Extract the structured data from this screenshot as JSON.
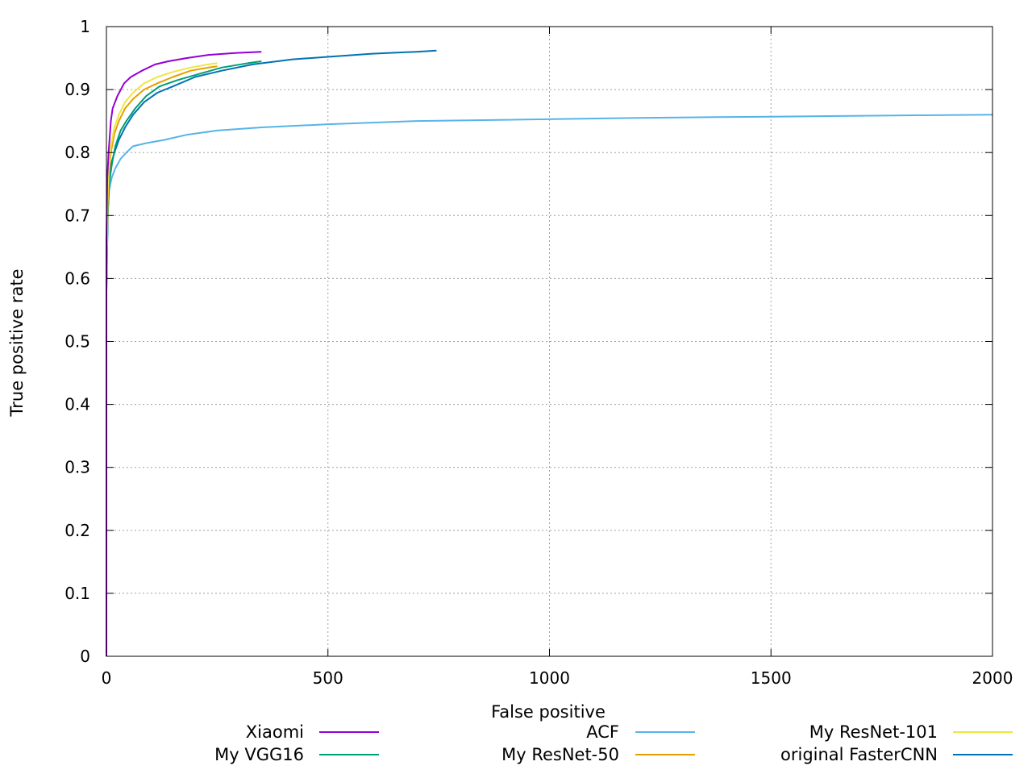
{
  "chart_data": {
    "type": "line",
    "title": "",
    "xlabel": "False positive",
    "ylabel": "True positive rate",
    "xlim": [
      0,
      2000
    ],
    "ylim": [
      0,
      1
    ],
    "xticks": [
      "0",
      "500",
      "1000",
      "1500",
      "2000"
    ],
    "yticks": [
      "0",
      "0.1",
      "0.2",
      "0.3",
      "0.4",
      "0.5",
      "0.6",
      "0.7",
      "0.8",
      "0.9",
      "1"
    ],
    "grid": true,
    "legend_position": "bottom",
    "series": [
      {
        "name": "Xiaomi",
        "color": "#9400d3",
        "points": [
          [
            0,
            0
          ],
          [
            0,
            0.66
          ],
          [
            2,
            0.76
          ],
          [
            5,
            0.8
          ],
          [
            10,
            0.85
          ],
          [
            14,
            0.87
          ],
          [
            25,
            0.89
          ],
          [
            40,
            0.91
          ],
          [
            55,
            0.92
          ],
          [
            80,
            0.93
          ],
          [
            110,
            0.94
          ],
          [
            140,
            0.945
          ],
          [
            180,
            0.95
          ],
          [
            230,
            0.955
          ],
          [
            290,
            0.958
          ],
          [
            350,
            0.96
          ]
        ]
      },
      {
        "name": "My VGG16",
        "color": "#009e73",
        "points": [
          [
            0,
            0
          ],
          [
            0,
            0.58
          ],
          [
            3,
            0.7
          ],
          [
            6,
            0.75
          ],
          [
            12,
            0.78
          ],
          [
            20,
            0.81
          ],
          [
            32,
            0.835
          ],
          [
            45,
            0.85
          ],
          [
            65,
            0.87
          ],
          [
            90,
            0.89
          ],
          [
            120,
            0.905
          ],
          [
            160,
            0.915
          ],
          [
            210,
            0.925
          ],
          [
            260,
            0.935
          ],
          [
            320,
            0.942
          ],
          [
            350,
            0.945
          ]
        ]
      },
      {
        "name": "ACF",
        "color": "#56b4e9",
        "points": [
          [
            0,
            0
          ],
          [
            0,
            0.6
          ],
          [
            3,
            0.7
          ],
          [
            6,
            0.74
          ],
          [
            12,
            0.76
          ],
          [
            20,
            0.775
          ],
          [
            32,
            0.79
          ],
          [
            45,
            0.8
          ],
          [
            60,
            0.81
          ],
          [
            90,
            0.815
          ],
          [
            130,
            0.82
          ],
          [
            180,
            0.828
          ],
          [
            250,
            0.835
          ],
          [
            350,
            0.84
          ],
          [
            500,
            0.845
          ],
          [
            700,
            0.85
          ],
          [
            900,
            0.852
          ],
          [
            1200,
            0.855
          ],
          [
            1500,
            0.857
          ],
          [
            1800,
            0.859
          ],
          [
            2000,
            0.86
          ]
        ]
      },
      {
        "name": "My ResNet-50",
        "color": "#e69f00",
        "points": [
          [
            0,
            0
          ],
          [
            0,
            0.6
          ],
          [
            3,
            0.72
          ],
          [
            6,
            0.77
          ],
          [
            10,
            0.8
          ],
          [
            18,
            0.83
          ],
          [
            28,
            0.85
          ],
          [
            42,
            0.87
          ],
          [
            60,
            0.885
          ],
          [
            85,
            0.9
          ],
          [
            115,
            0.91
          ],
          [
            150,
            0.92
          ],
          [
            190,
            0.93
          ],
          [
            230,
            0.935
          ],
          [
            250,
            0.937
          ]
        ]
      },
      {
        "name": "My ResNet-101",
        "color": "#f0e442",
        "points": [
          [
            0,
            0
          ],
          [
            0,
            0.62
          ],
          [
            3,
            0.74
          ],
          [
            6,
            0.78
          ],
          [
            10,
            0.81
          ],
          [
            18,
            0.84
          ],
          [
            28,
            0.86
          ],
          [
            42,
            0.88
          ],
          [
            60,
            0.895
          ],
          [
            85,
            0.91
          ],
          [
            115,
            0.92
          ],
          [
            150,
            0.928
          ],
          [
            190,
            0.935
          ],
          [
            230,
            0.94
          ],
          [
            250,
            0.942
          ]
        ]
      },
      {
        "name": "original FasterCNN",
        "color": "#0072b2",
        "points": [
          [
            0,
            0
          ],
          [
            0,
            0.58
          ],
          [
            3,
            0.7
          ],
          [
            6,
            0.75
          ],
          [
            10,
            0.78
          ],
          [
            18,
            0.8
          ],
          [
            28,
            0.82
          ],
          [
            42,
            0.84
          ],
          [
            60,
            0.86
          ],
          [
            85,
            0.88
          ],
          [
            115,
            0.895
          ],
          [
            150,
            0.905
          ],
          [
            200,
            0.92
          ],
          [
            260,
            0.93
          ],
          [
            330,
            0.94
          ],
          [
            420,
            0.948
          ],
          [
            500,
            0.952
          ],
          [
            600,
            0.957
          ],
          [
            700,
            0.96
          ],
          [
            745,
            0.962
          ]
        ]
      }
    ]
  }
}
